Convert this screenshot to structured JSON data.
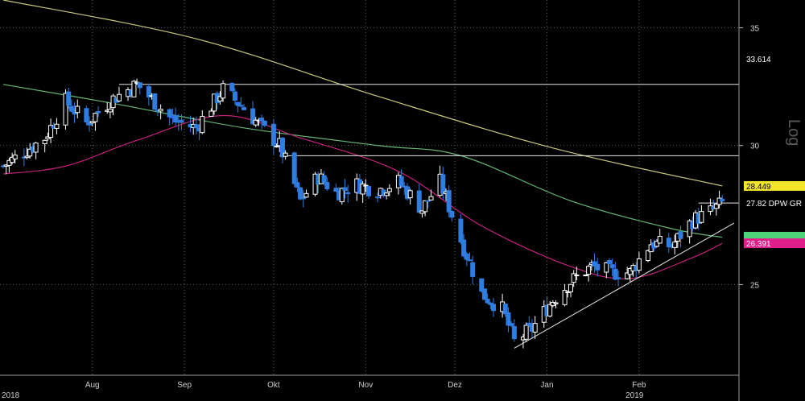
{
  "chart_data": {
    "type": "candlestick",
    "y_scale": "log",
    "scale_label": "Log",
    "ylim": [
      22.2,
      36.3
    ],
    "y_ticks": [
      25,
      30,
      35
    ],
    "x_months": [
      {
        "label": "Aug",
        "date": "2018-08-01"
      },
      {
        "label": "Sep",
        "date": "2018-09-01"
      },
      {
        "label": "Okt",
        "date": "2018-10-01"
      },
      {
        "label": "Nov",
        "date": "2018-11-01"
      },
      {
        "label": "Dez",
        "date": "2018-12-01"
      },
      {
        "label": "Jan",
        "date": "2019-01-01"
      },
      {
        "label": "Feb",
        "date": "2019-02-01"
      }
    ],
    "x_years": [
      {
        "label": "2018",
        "date": "2018-07-02"
      },
      {
        "label": "2019",
        "date": "2019-01-28"
      }
    ],
    "x_range": [
      "2018-07-02",
      "2019-03-05"
    ],
    "candle_color_up": "#ffffff",
    "candle_color_down": "#2f7de1",
    "trend_points": [
      {
        "date": "2018-07-02",
        "close": 29.2
      },
      {
        "date": "2018-07-16",
        "close": 30.3
      },
      {
        "date": "2018-07-23",
        "close": 31.8
      },
      {
        "date": "2018-07-30",
        "close": 30.9
      },
      {
        "date": "2018-08-08",
        "close": 31.9
      },
      {
        "date": "2018-08-16",
        "close": 32.5
      },
      {
        "date": "2018-08-28",
        "close": 31.0
      },
      {
        "date": "2018-09-05",
        "close": 30.7
      },
      {
        "date": "2018-09-14",
        "close": 32.3
      },
      {
        "date": "2018-09-21",
        "close": 31.5
      },
      {
        "date": "2018-09-28",
        "close": 30.6
      },
      {
        "date": "2018-10-03",
        "close": 30.0
      },
      {
        "date": "2018-10-10",
        "close": 27.9
      },
      {
        "date": "2018-10-16",
        "close": 28.8
      },
      {
        "date": "2018-10-22",
        "close": 28.2
      },
      {
        "date": "2018-10-29",
        "close": 28.5
      },
      {
        "date": "2018-11-05",
        "close": 28.3
      },
      {
        "date": "2018-11-12",
        "close": 28.6
      },
      {
        "date": "2018-11-20",
        "close": 27.6
      },
      {
        "date": "2018-11-26",
        "close": 28.6
      },
      {
        "date": "2018-12-03",
        "close": 26.5
      },
      {
        "date": "2018-12-10",
        "close": 24.7
      },
      {
        "date": "2018-12-17",
        "close": 24.2
      },
      {
        "date": "2018-12-21",
        "close": 23.2
      },
      {
        "date": "2018-12-27",
        "close": 23.6
      },
      {
        "date": "2019-01-03",
        "close": 24.5
      },
      {
        "date": "2019-01-09",
        "close": 25.1
      },
      {
        "date": "2019-01-16",
        "close": 25.6
      },
      {
        "date": "2019-01-23",
        "close": 25.4
      },
      {
        "date": "2019-01-29",
        "close": 25.4
      },
      {
        "date": "2019-02-05",
        "close": 26.4
      },
      {
        "date": "2019-02-12",
        "close": 26.3
      },
      {
        "date": "2019-02-19",
        "close": 27.2
      },
      {
        "date": "2019-02-25",
        "close": 27.5
      },
      {
        "date": "2019-03-01",
        "close": 27.82
      }
    ],
    "moving_averages": [
      {
        "color": "#c9c87a",
        "points": [
          {
            "date": "2018-07-02",
            "value": 36.3
          },
          {
            "date": "2018-09-05",
            "value": 34.5
          },
          {
            "date": "2018-11-05",
            "value": 32.0
          },
          {
            "date": "2019-01-03",
            "value": 29.9
          },
          {
            "date": "2019-03-01",
            "value": 28.449
          }
        ],
        "last_value": "28.449",
        "tag_color": "#f2e52a"
      },
      {
        "color": "#63b776",
        "points": [
          {
            "date": "2018-07-02",
            "value": 32.5
          },
          {
            "date": "2018-08-08",
            "value": 31.7
          },
          {
            "date": "2018-09-21",
            "value": 30.7
          },
          {
            "date": "2018-11-05",
            "value": 30.0
          },
          {
            "date": "2018-12-03",
            "value": 29.6
          },
          {
            "date": "2019-01-09",
            "value": 27.9
          },
          {
            "date": "2019-02-12",
            "value": 26.9
          },
          {
            "date": "2019-03-01",
            "value": 26.6
          }
        ],
        "last_value": "",
        "tag_color": "#4ed27a"
      },
      {
        "color": "#c2227a",
        "points": [
          {
            "date": "2018-07-02",
            "value": 28.9
          },
          {
            "date": "2018-07-23",
            "value": 29.2
          },
          {
            "date": "2018-08-16",
            "value": 30.2
          },
          {
            "date": "2018-09-14",
            "value": 31.2
          },
          {
            "date": "2018-10-10",
            "value": 30.3
          },
          {
            "date": "2018-11-12",
            "value": 29.0
          },
          {
            "date": "2018-12-10",
            "value": 27.0
          },
          {
            "date": "2019-01-09",
            "value": 25.6
          },
          {
            "date": "2019-01-29",
            "value": 25.2
          },
          {
            "date": "2019-02-19",
            "value": 25.9
          },
          {
            "date": "2019-03-01",
            "value": 26.391
          }
        ],
        "last_value": "26.391",
        "tag_color": "#e0208a"
      }
    ],
    "horizontal_lines": [
      32.5,
      29.6,
      27.82
    ],
    "trendline": {
      "from": {
        "date": "2018-12-21",
        "value": 23.0
      },
      "to": {
        "date": "2019-03-05",
        "value": 27.1
      }
    },
    "labels": {
      "top_tag": "33.614",
      "last_price": "27.82 DPW GR"
    }
  }
}
